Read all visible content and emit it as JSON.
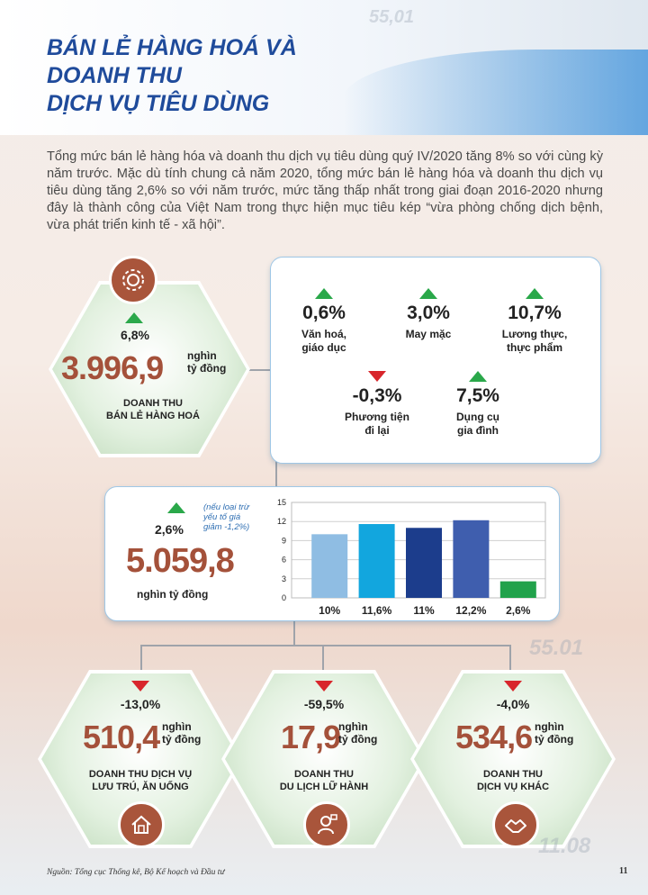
{
  "title": {
    "line1": "BÁN LẺ HÀNG HOÁ VÀ",
    "line2": "DOANH THU",
    "line3": "DỊCH VỤ TIÊU DÙNG"
  },
  "decor_numbers": [
    "55,01",
    "55.01",
    "11.08"
  ],
  "intro": "Tổng mức bán lẻ hàng hóa và doanh thu dịch vụ tiêu dùng quý IV/2020 tăng 8% so với cùng kỳ năm trước. Mặc dù tính chung cả năm 2020, tổng mức bán lẻ hàng hóa và doanh thu dịch vụ tiêu dùng tăng 2,6% so với năm trước, mức tăng thấp nhất trong giai đoạn 2016-2020  nhưng đây là thành công của Việt Nam trong thực hiện mục tiêu kép “vừa phòng chống dịch bệnh, vừa phát triển kinh tế - xã hội”.",
  "retail": {
    "change": "6,8%",
    "value": "3.996,9",
    "unit_line1": "nghìn",
    "unit_line2": "tỷ đồng",
    "label_line1": "DOANH THU",
    "label_line2": "BÁN LẺ HÀNG HOÁ",
    "icon": "gear-circle-icon"
  },
  "categories": [
    {
      "pct": "0,6%",
      "name_line1": "Văn hoá,",
      "name_line2": "giáo dục",
      "direction": "up"
    },
    {
      "pct": "3,0%",
      "name_line1": "May mặc",
      "name_line2": "",
      "direction": "up"
    },
    {
      "pct": "10,7%",
      "name_line1": "Lương thực,",
      "name_line2": "thực phẩm",
      "direction": "up"
    },
    {
      "pct": "-0,3%",
      "name_line1": "Phương tiện",
      "name_line2": "đi lại",
      "direction": "down"
    },
    {
      "pct": "7,5%",
      "name_line1": "Dụng cụ",
      "name_line2": "gia đình",
      "direction": "up"
    }
  ],
  "total": {
    "change": "2,6%",
    "note_line1": "(nếu loại trừ",
    "note_line2": "yếu tố giá",
    "note_line3": "giảm -1,2%)",
    "value": "5.059,8",
    "unit": "nghìn tỷ đồng"
  },
  "chart_data": {
    "type": "bar",
    "categories": [
      "10%",
      "11,6%",
      "11%",
      "12,2%",
      "2,6%"
    ],
    "values": [
      10.0,
      11.6,
      11.0,
      12.2,
      2.6
    ],
    "colors": [
      "#8fbde3",
      "#12a6de",
      "#1c3d8c",
      "#3f5eae",
      "#21a24b"
    ],
    "yticks": [
      "15",
      "12",
      "9",
      "6",
      "3",
      "0"
    ],
    "ylim": [
      0,
      15
    ],
    "grid": true,
    "title": "",
    "xlabel": "",
    "ylabel": ""
  },
  "services": [
    {
      "change": "-13,0%",
      "value": "510,4",
      "unit_line1": "nghìn",
      "unit_line2": "tỷ đồng",
      "label_line1": "DOANH THU DỊCH VỤ",
      "label_line2": "LƯU TRÚ, ĂN UỐNG",
      "icon": "house-icon"
    },
    {
      "change": "-59,5%",
      "value": "17,9",
      "unit_line1": "nghìn",
      "unit_line2": "tỷ đồng",
      "label_line1": "DOANH THU",
      "label_line2": "DU LỊCH LỮ HÀNH",
      "icon": "tour-guide-icon"
    },
    {
      "change": "-4,0%",
      "value": "534,6",
      "unit_line1": "nghìn",
      "unit_line2": "tỷ đồng",
      "label_line1": "DOANH THU",
      "label_line2": "DỊCH VỤ KHÁC",
      "icon": "handshake-icon"
    }
  ],
  "footer": {
    "source": "Nguồn: Tổng cục Thống kê, Bộ Kế hoạch và Đầu tư",
    "page": "11"
  },
  "colors": {
    "title": "#1f4b9b",
    "accent_brown": "#a4513a",
    "up": "#2aa84a",
    "down": "#d8262c"
  }
}
